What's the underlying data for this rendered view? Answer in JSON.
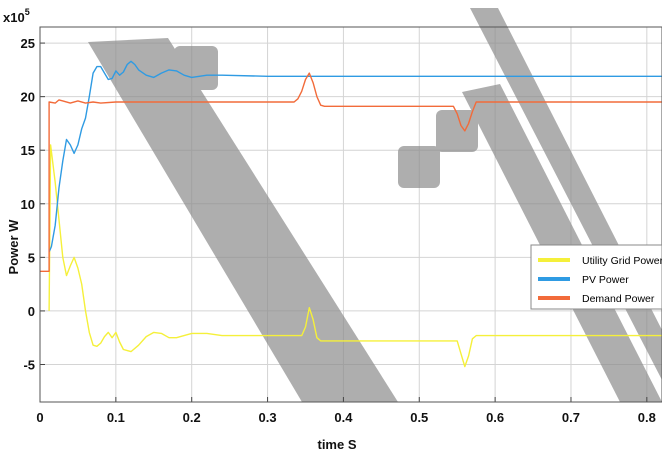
{
  "chart_data": {
    "type": "line",
    "title": "",
    "xlabel": "time S",
    "ylabel": "Power W",
    "y_multiplier": "x10",
    "y_multiplier_exp": "5",
    "xlim": [
      0,
      0.82
    ],
    "ylim": [
      -8.5,
      26.5
    ],
    "x_ticks": [
      "0",
      "0.1",
      "0.2",
      "0.3",
      "0.4",
      "0.5",
      "0.6",
      "0.7",
      "0.8"
    ],
    "x_tick_values": [
      0,
      0.1,
      0.2,
      0.3,
      0.4,
      0.5,
      0.6,
      0.7,
      0.8
    ],
    "y_ticks": [
      "-5",
      "0",
      "5",
      "10",
      "15",
      "20",
      "25"
    ],
    "y_tick_values": [
      -5,
      0,
      5,
      10,
      15,
      20,
      25
    ],
    "grid": true,
    "legend_position": "right",
    "series": [
      {
        "name": "Utility Grid Power",
        "color": "#f5f03a",
        "points": [
          [
            0.012,
            0.0
          ],
          [
            0.014,
            15.5
          ],
          [
            0.02,
            12.0
          ],
          [
            0.025,
            8.5
          ],
          [
            0.03,
            5.0
          ],
          [
            0.035,
            3.3
          ],
          [
            0.04,
            4.2
          ],
          [
            0.045,
            5.0
          ],
          [
            0.05,
            4.0
          ],
          [
            0.055,
            2.5
          ],
          [
            0.06,
            0.0
          ],
          [
            0.065,
            -2.0
          ],
          [
            0.07,
            -3.2
          ],
          [
            0.075,
            -3.3
          ],
          [
            0.08,
            -3.0
          ],
          [
            0.085,
            -2.4
          ],
          [
            0.09,
            -2.0
          ],
          [
            0.095,
            -2.5
          ],
          [
            0.1,
            -2.0
          ],
          [
            0.105,
            -2.9
          ],
          [
            0.11,
            -3.6
          ],
          [
            0.12,
            -3.8
          ],
          [
            0.13,
            -3.2
          ],
          [
            0.14,
            -2.4
          ],
          [
            0.15,
            -2.0
          ],
          [
            0.16,
            -2.1
          ],
          [
            0.17,
            -2.5
          ],
          [
            0.18,
            -2.5
          ],
          [
            0.19,
            -2.3
          ],
          [
            0.2,
            -2.1
          ],
          [
            0.22,
            -2.1
          ],
          [
            0.24,
            -2.3
          ],
          [
            0.3,
            -2.3
          ],
          [
            0.345,
            -2.3
          ],
          [
            0.35,
            -1.5
          ],
          [
            0.355,
            0.3
          ],
          [
            0.36,
            -0.8
          ],
          [
            0.365,
            -2.5
          ],
          [
            0.37,
            -2.8
          ],
          [
            0.4,
            -2.8
          ],
          [
            0.5,
            -2.8
          ],
          [
            0.55,
            -2.8
          ],
          [
            0.555,
            -4.0
          ],
          [
            0.56,
            -5.2
          ],
          [
            0.565,
            -4.2
          ],
          [
            0.57,
            -2.6
          ],
          [
            0.575,
            -2.3
          ],
          [
            0.6,
            -2.3
          ],
          [
            0.7,
            -2.3
          ],
          [
            0.82,
            -2.3
          ]
        ]
      },
      {
        "name": "PV Power",
        "color": "#2f9be3",
        "points": [
          [
            0.012,
            5.5
          ],
          [
            0.015,
            6.0
          ],
          [
            0.02,
            8.0
          ],
          [
            0.025,
            11.5
          ],
          [
            0.03,
            14.0
          ],
          [
            0.035,
            16.0
          ],
          [
            0.04,
            15.5
          ],
          [
            0.045,
            14.7
          ],
          [
            0.05,
            15.5
          ],
          [
            0.055,
            17.0
          ],
          [
            0.06,
            18.0
          ],
          [
            0.065,
            20.0
          ],
          [
            0.07,
            22.2
          ],
          [
            0.075,
            22.8
          ],
          [
            0.08,
            22.8
          ],
          [
            0.085,
            22.2
          ],
          [
            0.09,
            21.6
          ],
          [
            0.095,
            21.7
          ],
          [
            0.1,
            22.4
          ],
          [
            0.105,
            22.0
          ],
          [
            0.11,
            22.3
          ],
          [
            0.115,
            23.0
          ],
          [
            0.12,
            23.3
          ],
          [
            0.125,
            23.0
          ],
          [
            0.13,
            22.5
          ],
          [
            0.14,
            22.0
          ],
          [
            0.15,
            21.8
          ],
          [
            0.16,
            22.2
          ],
          [
            0.17,
            22.5
          ],
          [
            0.18,
            22.4
          ],
          [
            0.19,
            22.0
          ],
          [
            0.2,
            21.8
          ],
          [
            0.22,
            22.0
          ],
          [
            0.24,
            22.0
          ],
          [
            0.3,
            21.9
          ],
          [
            0.4,
            21.9
          ],
          [
            0.5,
            21.9
          ],
          [
            0.6,
            21.9
          ],
          [
            0.7,
            21.9
          ],
          [
            0.82,
            21.9
          ]
        ]
      },
      {
        "name": "Demand Power",
        "color": "#f26b3a",
        "points": [
          [
            0.0,
            3.7
          ],
          [
            0.012,
            3.7
          ],
          [
            0.012,
            19.5
          ],
          [
            0.02,
            19.4
          ],
          [
            0.025,
            19.7
          ],
          [
            0.03,
            19.6
          ],
          [
            0.04,
            19.4
          ],
          [
            0.05,
            19.6
          ],
          [
            0.06,
            19.4
          ],
          [
            0.07,
            19.5
          ],
          [
            0.08,
            19.4
          ],
          [
            0.1,
            19.5
          ],
          [
            0.2,
            19.5
          ],
          [
            0.3,
            19.5
          ],
          [
            0.335,
            19.5
          ],
          [
            0.34,
            19.8
          ],
          [
            0.345,
            20.5
          ],
          [
            0.35,
            21.6
          ],
          [
            0.355,
            22.2
          ],
          [
            0.36,
            21.3
          ],
          [
            0.365,
            20.0
          ],
          [
            0.37,
            19.2
          ],
          [
            0.375,
            19.1
          ],
          [
            0.4,
            19.1
          ],
          [
            0.5,
            19.1
          ],
          [
            0.545,
            19.1
          ],
          [
            0.55,
            18.4
          ],
          [
            0.555,
            17.3
          ],
          [
            0.56,
            16.8
          ],
          [
            0.565,
            17.5
          ],
          [
            0.57,
            18.6
          ],
          [
            0.575,
            19.5
          ],
          [
            0.6,
            19.5
          ],
          [
            0.7,
            19.5
          ],
          [
            0.82,
            19.5
          ]
        ]
      }
    ]
  },
  "watermark_color": "#8c8c8c"
}
